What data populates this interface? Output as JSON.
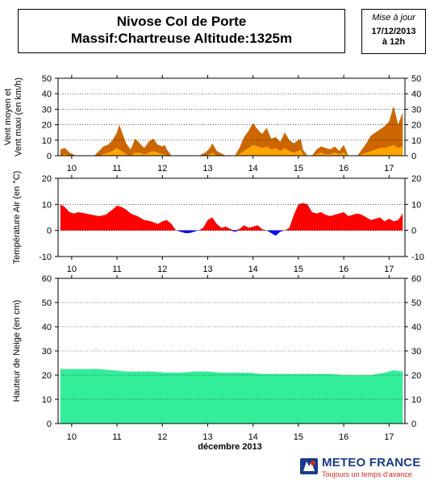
{
  "header": {
    "title_line1": "Nivose Col de Porte",
    "title_line2": "Massif:Chartreuse Altitude:1325m",
    "update_label": "Mise à jour",
    "update_date": "17/12/2013",
    "update_time": "à 12h"
  },
  "logo": {
    "name": "METEO FRANCE",
    "slogan": "Toujours un temps d'avance",
    "colors": {
      "blue": "#1b3a8c",
      "red": "#d4261c"
    }
  },
  "colors": {
    "wind_max": "#cc6600",
    "wind_mean": "#ffa500",
    "temp_positive": "#ff0000",
    "temp_negative": "#0000ff",
    "snow": "#33ee99"
  },
  "chart_data": [
    {
      "type": "area",
      "ylabel": "Vent moyen et Vent maxi (en km/h)",
      "ylim": [
        0,
        50
      ],
      "yticks": [
        0,
        10,
        20,
        30,
        40,
        50
      ],
      "grid": true,
      "x_ticks": [
        "10",
        "11",
        "12",
        "13",
        "14",
        "15",
        "16",
        "17"
      ],
      "x_tick_days": [
        10,
        11,
        12,
        13,
        14,
        15,
        16,
        17
      ],
      "x": [
        9.75,
        9.85,
        9.95,
        10.1,
        10.3,
        10.5,
        10.6,
        10.7,
        10.8,
        10.9,
        11.0,
        11.05,
        11.1,
        11.2,
        11.3,
        11.4,
        11.5,
        11.6,
        11.7,
        11.8,
        11.9,
        12.0,
        12.05,
        12.1,
        12.2,
        12.4,
        12.6,
        12.8,
        12.95,
        13.05,
        13.1,
        13.2,
        13.4,
        13.6,
        13.7,
        13.8,
        13.9,
        14.0,
        14.1,
        14.2,
        14.3,
        14.4,
        14.5,
        14.6,
        14.7,
        14.8,
        14.9,
        15.0,
        15.05,
        15.1,
        15.2,
        15.3,
        15.4,
        15.5,
        15.6,
        15.7,
        15.8,
        15.9,
        16.0,
        16.1,
        16.2,
        16.3,
        16.4,
        16.5,
        16.6,
        16.7,
        16.8,
        16.9,
        17.0,
        17.1,
        17.2,
        17.3
      ],
      "series": [
        {
          "values": [
            4,
            5,
            2,
            0,
            0,
            0,
            3,
            6,
            7,
            10,
            15,
            20,
            16,
            8,
            4,
            11,
            8,
            5,
            9,
            11,
            7,
            6,
            7,
            4,
            0,
            0,
            0,
            0,
            2,
            5,
            8,
            3,
            0,
            0,
            5,
            12,
            16,
            21,
            17,
            14,
            18,
            11,
            12,
            9,
            15,
            10,
            8,
            10,
            11,
            4,
            0,
            0,
            4,
            6,
            5,
            4,
            6,
            3,
            7,
            0,
            0,
            0,
            4,
            8,
            13,
            15,
            17,
            19,
            22,
            32,
            20,
            28
          ]
        },
        {
          "values": [
            0,
            1,
            0,
            0,
            0,
            0,
            0,
            1,
            2,
            3,
            5,
            4,
            3,
            1,
            0,
            2,
            2,
            1,
            2,
            3,
            2,
            1,
            1,
            0,
            0,
            0,
            0,
            0,
            0,
            1,
            2,
            0,
            0,
            0,
            1,
            3,
            5,
            7,
            6,
            5,
            6,
            4,
            5,
            3,
            5,
            3,
            2,
            3,
            4,
            1,
            0,
            0,
            1,
            2,
            1,
            1,
            2,
            1,
            2,
            0,
            0,
            0,
            1,
            2,
            3,
            4,
            5,
            5,
            6,
            7,
            5,
            6
          ]
        }
      ]
    },
    {
      "type": "area",
      "ylabel": "Température Air (en °C)",
      "ylim": [
        -10,
        20
      ],
      "yticks": [
        -10,
        0,
        10,
        20
      ],
      "grid": true,
      "x_ticks": [
        "10",
        "11",
        "12",
        "13",
        "14",
        "15",
        "16",
        "17"
      ],
      "x_tick_days": [
        10,
        11,
        12,
        13,
        14,
        15,
        16,
        17
      ],
      "x": [
        9.75,
        9.85,
        9.95,
        10.05,
        10.15,
        10.3,
        10.45,
        10.6,
        10.75,
        10.9,
        11.0,
        11.1,
        11.2,
        11.3,
        11.45,
        11.6,
        11.75,
        11.9,
        12.0,
        12.1,
        12.2,
        12.3,
        12.4,
        12.5,
        12.6,
        12.7,
        12.8,
        12.9,
        13.0,
        13.1,
        13.2,
        13.3,
        13.4,
        13.5,
        13.6,
        13.7,
        13.8,
        13.9,
        14.0,
        14.1,
        14.2,
        14.3,
        14.4,
        14.5,
        14.6,
        14.7,
        14.8,
        14.9,
        15.0,
        15.1,
        15.2,
        15.3,
        15.4,
        15.5,
        15.6,
        15.7,
        15.8,
        15.9,
        16.0,
        16.1,
        16.2,
        16.3,
        16.4,
        16.5,
        16.6,
        16.7,
        16.8,
        16.9,
        17.0,
        17.1,
        17.2,
        17.3
      ],
      "values": [
        10,
        9,
        7,
        6.5,
        7,
        6.5,
        6,
        5.5,
        6,
        8,
        9.5,
        9,
        8,
        6.5,
        5.5,
        4,
        3.5,
        2.5,
        3.5,
        4,
        2.5,
        0,
        -0.5,
        -1,
        -1,
        -0.5,
        0,
        1,
        4,
        5,
        2.5,
        1,
        1.5,
        0.5,
        -0.5,
        0.5,
        2,
        1,
        1.5,
        2,
        0.5,
        0,
        -1,
        -2,
        -0.5,
        0,
        1,
        6,
        10,
        10.5,
        10,
        7,
        6.5,
        7,
        6,
        5.5,
        6,
        6.5,
        7,
        5.5,
        6,
        6.5,
        6,
        5,
        4,
        4.5,
        5,
        3.5,
        4.5,
        3.5,
        4,
        6.5
      ]
    },
    {
      "type": "area",
      "ylabel": "Hauteur de Neige (en cm)",
      "ylim": [
        0,
        60
      ],
      "yticks": [
        0,
        10,
        20,
        30,
        40,
        50,
        60
      ],
      "grid": true,
      "xlabel": "décembre 2013",
      "x_ticks": [
        "10",
        "11",
        "12",
        "13",
        "14",
        "15",
        "16",
        "17"
      ],
      "x_tick_days": [
        10,
        11,
        12,
        13,
        14,
        15,
        16,
        17
      ],
      "x": [
        9.75,
        10.0,
        10.3,
        10.6,
        10.9,
        11.2,
        11.5,
        11.8,
        12.1,
        12.4,
        12.7,
        13.0,
        13.3,
        13.6,
        13.9,
        14.2,
        14.5,
        14.8,
        15.1,
        15.4,
        15.7,
        16.0,
        16.3,
        16.6,
        16.9,
        17.1,
        17.3
      ],
      "values": [
        22.5,
        22.5,
        22.5,
        22.5,
        22,
        21.5,
        21.5,
        21.5,
        21,
        21,
        21.5,
        21.5,
        21,
        21,
        21,
        20.5,
        20.5,
        20.5,
        20.5,
        20.5,
        20.5,
        20,
        20,
        20,
        21,
        22,
        21.5
      ]
    }
  ]
}
